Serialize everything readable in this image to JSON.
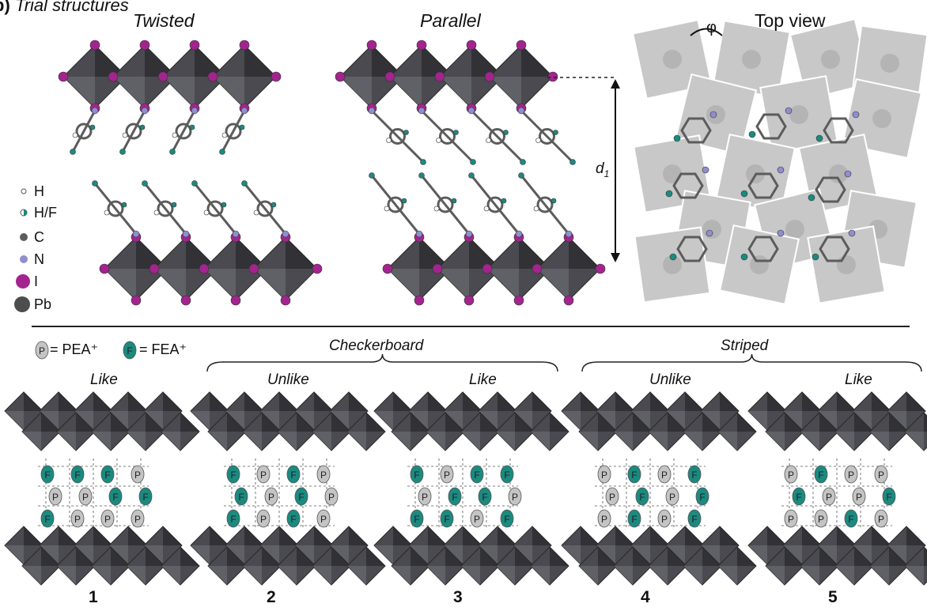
{
  "panel_label": "b)",
  "panel_title": "Trial structures",
  "top": {
    "twisted": "Twisted",
    "parallel": "Parallel",
    "top_view": "Top view",
    "phi": "φ",
    "d1_main": "d",
    "d1_sub": "1"
  },
  "legend": {
    "items": [
      {
        "symbol": "h-icon",
        "label": "H"
      },
      {
        "symbol": "hf-icon",
        "label": "H/F"
      },
      {
        "symbol": "c-icon",
        "label": "C"
      },
      {
        "symbol": "n-icon",
        "label": "N"
      },
      {
        "symbol": "i-icon",
        "label": "I"
      },
      {
        "symbol": "pb-icon",
        "label": "Pb"
      }
    ]
  },
  "key": {
    "p_glyph": "P",
    "p_eq": "= PEA⁺",
    "f_glyph": "F",
    "f_eq": "= FEA⁺"
  },
  "groups": {
    "checkerboard": "Checkerboard",
    "striped": "Striped"
  },
  "configs": [
    {
      "mode": "Like",
      "number": "1",
      "pattern": "FFFPPPFFFPPP"
    },
    {
      "mode": "Unlike",
      "number": "2",
      "pattern": "FPFPFPFPFPFP"
    },
    {
      "mode": "Like",
      "number": "3",
      "pattern": "FPFFPFFPFFPF"
    },
    {
      "mode": "Unlike",
      "number": "4",
      "pattern": "PFPFPFPFPFPF"
    },
    {
      "mode": "Like",
      "number": "5",
      "pattern": "PFPPFPPFPPFP"
    }
  ],
  "colors": {
    "octahedron": "#4a4a50",
    "octahedron_dark": "#2a2a2e",
    "iodine": "#a3248e",
    "carbon": "#5c5c5c",
    "nitrogen": "#8e8ed0",
    "fluorine_teal": "#1b8a80",
    "pea_gray": "#c4c4c4",
    "top_view_tile": "#c8c8c8"
  }
}
